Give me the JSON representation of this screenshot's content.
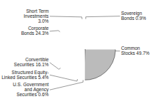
{
  "chart_data": {
    "type": "pie",
    "categories": [
      "Short Term\nInvestments\n3.0%",
      "Corporate\nBonds 24.3%",
      "Convertible\nSecurities 16.1%",
      "Structured Equity-\nLinked Securities 5.4%",
      "U.S. Government\nand Agency\nSecurities 0.6%",
      "Common\nStocks 49.7%",
      "Sovereign\nBonds 0.9%"
    ],
    "values": [
      3.0,
      24.3,
      16.1,
      5.4,
      0.6,
      49.7,
      0.9
    ],
    "colors": [
      "#555555",
      "#888888",
      "#aaaaaa",
      "#dddddd",
      "#ffffff",
      "#bbbbbb",
      "#222222"
    ]
  }
}
